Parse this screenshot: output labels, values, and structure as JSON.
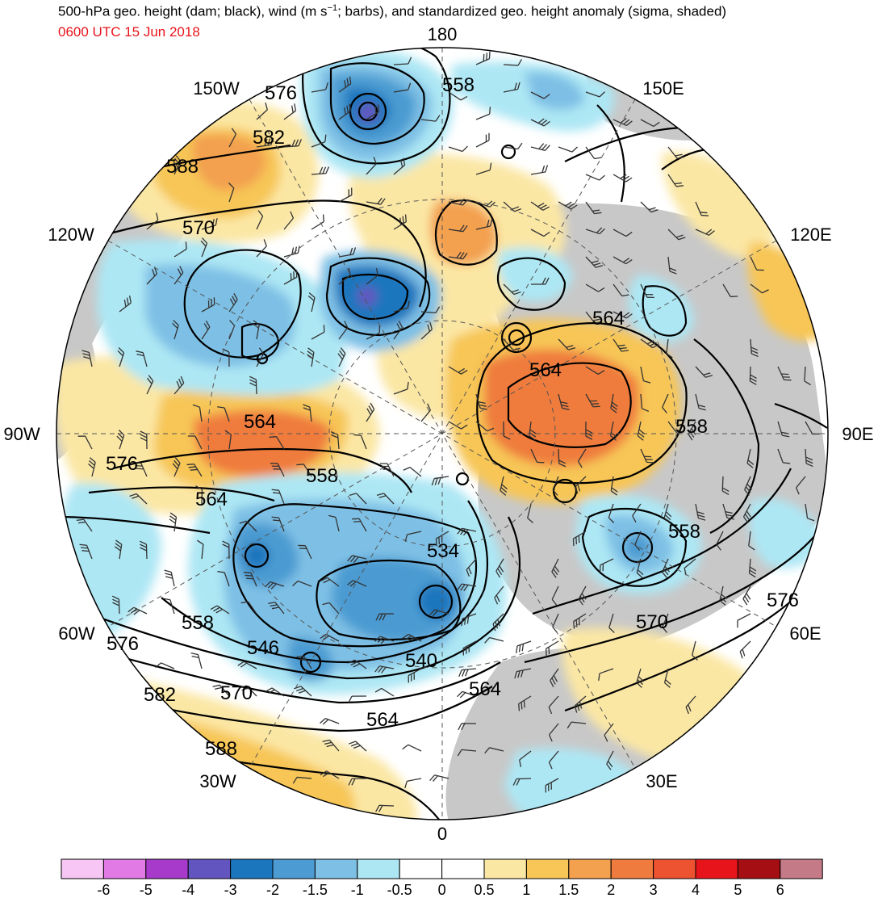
{
  "title": {
    "prefix": "500-hPa geo. height (dam; black), wind (m s",
    "exponent": "−1",
    "suffix": "; barbs), and standardized geo. height anomaly (sigma, shaded)"
  },
  "valid_time": "0600 UTC 15 Jun 2018",
  "colors": {
    "title_time": "#e8141b",
    "land": "#c8c8c8",
    "contour": "#000000"
  },
  "longitude_labels": [
    {
      "text": "180"
    },
    {
      "text": "150E"
    },
    {
      "text": "120E"
    },
    {
      "text": "90E"
    },
    {
      "text": "60E"
    },
    {
      "text": "30E"
    },
    {
      "text": "0"
    },
    {
      "text": "30W"
    },
    {
      "text": "60W"
    },
    {
      "text": "90W"
    },
    {
      "text": "120W"
    },
    {
      "text": "150W"
    }
  ],
  "contour_labels": [
    "558",
    "576",
    "582",
    "588",
    "570",
    "564",
    "564",
    "558",
    "564",
    "576",
    "564",
    "558",
    "558",
    "534",
    "546",
    "540",
    "564",
    "570",
    "576",
    "558",
    "576",
    "582",
    "570",
    "564",
    "588"
  ],
  "colorbar": {
    "ticks": [
      "-6",
      "-5",
      "-4",
      "-3",
      "-2",
      "-1.5",
      "-1",
      "-0.5",
      "0",
      "0.5",
      "1",
      "1.5",
      "2",
      "3",
      "4",
      "5",
      "6"
    ],
    "colors": [
      "#f7c6f5",
      "#e27ae6",
      "#a73acb",
      "#6355c0",
      "#1b76bd",
      "#4c9bd2",
      "#7ec0e5",
      "#ade7f4",
      "#ffffff",
      "#ffffff",
      "#fbe7a4",
      "#f7c657",
      "#f3a04f",
      "#ef7c3e",
      "#ed5330",
      "#e8141b",
      "#a50f14",
      "#c57a87"
    ]
  }
}
